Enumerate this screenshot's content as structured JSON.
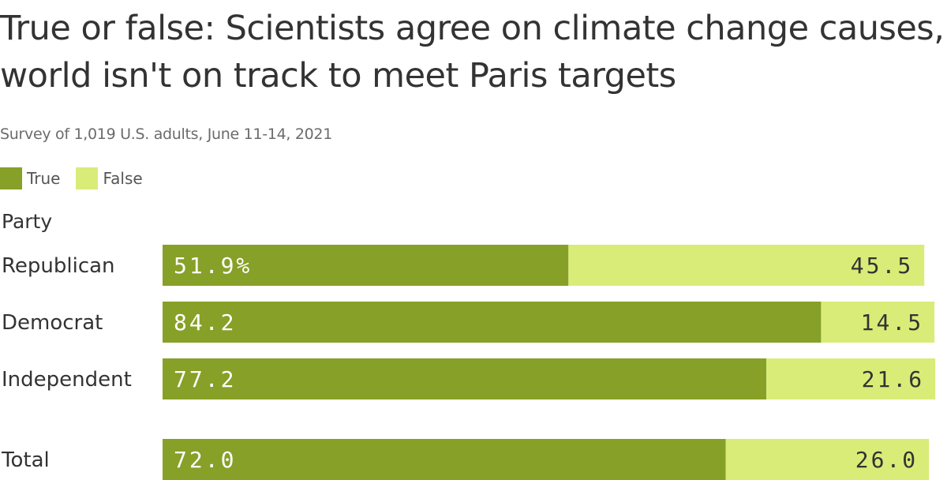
{
  "title": "True or false: Scientists agree on climate change causes, world isn't on track to meet Paris targets",
  "subtitle": "Survey of 1,019 U.S. adults, June 11-14, 2021",
  "colors": {
    "true": "#87a027",
    "false": "#d9ec78",
    "true_text": "#ffffff",
    "false_text": "#333333"
  },
  "chart_data": {
    "type": "bar",
    "orientation": "horizontal",
    "stacked": true,
    "group_label": "Party",
    "categories": [
      "Republican",
      "Democrat",
      "Independent",
      "Total"
    ],
    "series": [
      {
        "name": "True",
        "values": [
          51.9,
          84.2,
          77.2,
          72.0
        ],
        "labels": [
          "51.9%",
          "84.2",
          "77.2",
          "72.0"
        ]
      },
      {
        "name": "False",
        "values": [
          45.5,
          14.5,
          21.6,
          26.0
        ],
        "labels": [
          "45.5",
          "14.5",
          "21.6",
          "26.0"
        ]
      }
    ],
    "xlim": [
      0,
      100
    ],
    "legend": "top-left"
  }
}
